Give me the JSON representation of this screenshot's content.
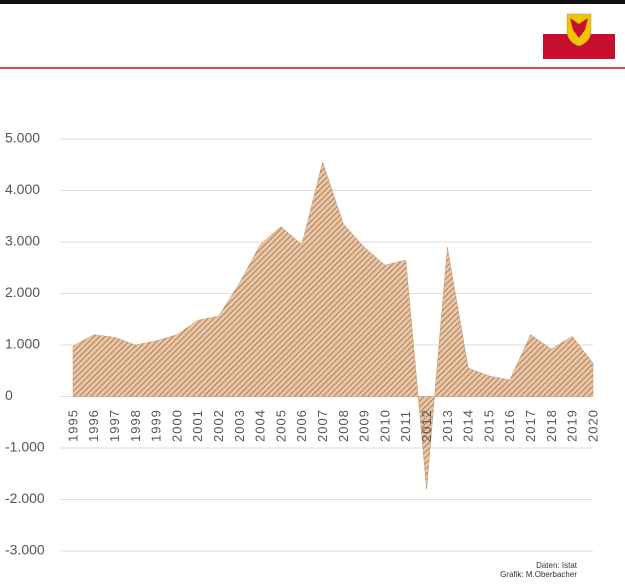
{
  "chart_data": {
    "type": "area",
    "categories": [
      "1995",
      "1996",
      "1997",
      "1998",
      "1999",
      "2000",
      "2001",
      "2002",
      "2003",
      "2004",
      "2005",
      "2006",
      "2007",
      "2008",
      "2009",
      "2010",
      "2011",
      "2012",
      "2013",
      "2014",
      "2015",
      "2016",
      "2017",
      "2018",
      "2019",
      "2020"
    ],
    "values": [
      980,
      1200,
      1150,
      1000,
      1080,
      1200,
      1480,
      1560,
      2200,
      2950,
      3300,
      2950,
      4550,
      3350,
      2900,
      2550,
      2650,
      -1800,
      2900,
      550,
      400,
      320,
      1200,
      920,
      1170,
      650
    ],
    "color": "#c8956a",
    "ylim": [
      -3000,
      5000
    ],
    "yticks": [
      {
        "value": -3000,
        "label": "-3.000"
      },
      {
        "value": -2000,
        "label": "-2.000"
      },
      {
        "value": -1000,
        "label": "-1.000"
      },
      0,
      {
        "value": 1000,
        "label": "1.000"
      },
      {
        "value": 2000,
        "label": "2.000"
      },
      {
        "value": 3000,
        "label": "3.000"
      },
      {
        "value": 4000,
        "label": "4.000"
      },
      {
        "value": 5000,
        "label": "5.000"
      }
    ],
    "grid": true,
    "annotations": [
      "Daten: Istat",
      "Grafik: M.Oberbacher"
    ]
  }
}
